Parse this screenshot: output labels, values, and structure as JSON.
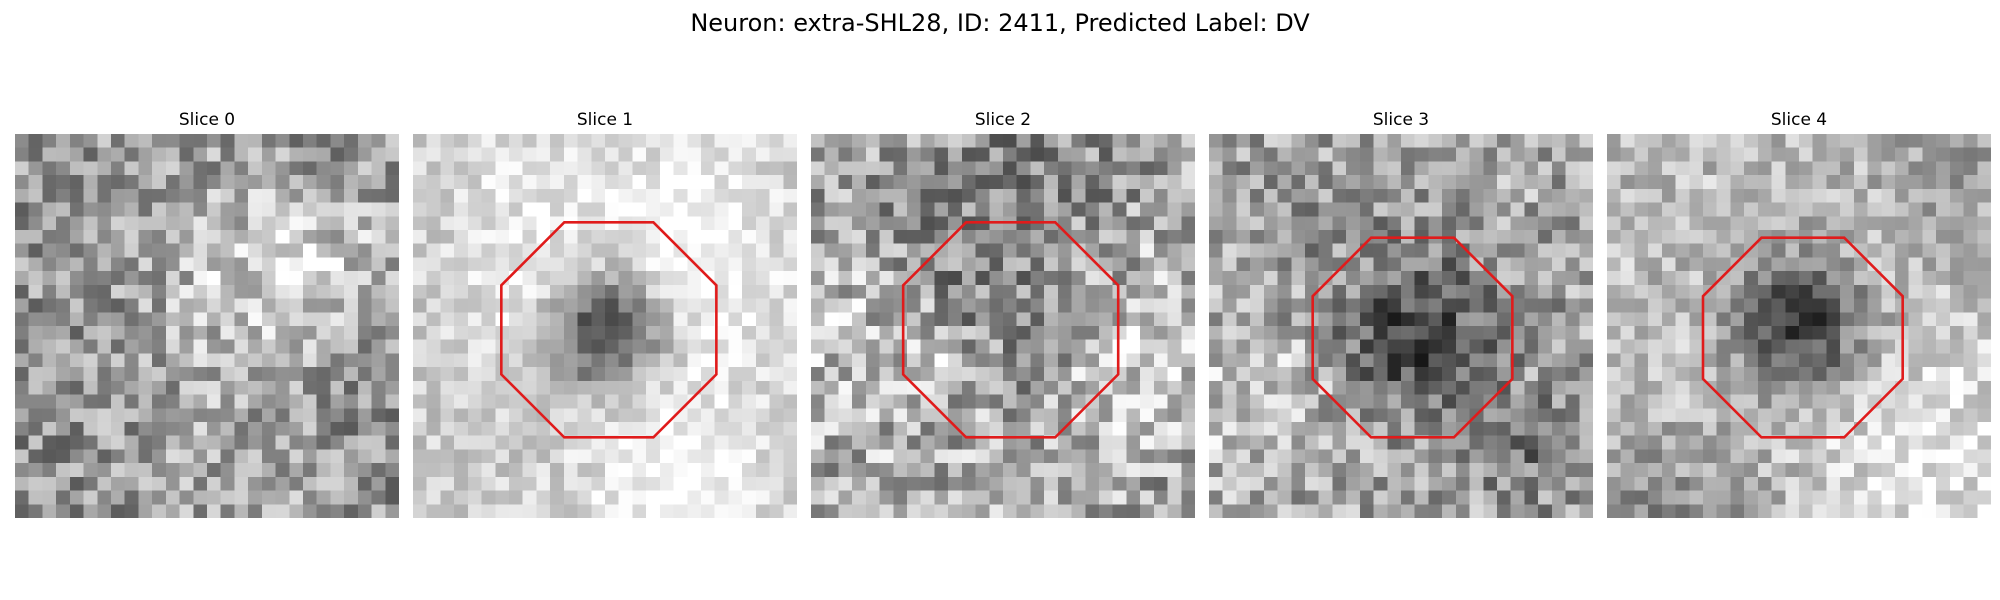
{
  "figure": {
    "title": "Neuron: extra-SHL28, ID: 2411, Predicted Label: DV"
  },
  "image": {
    "grid_size": 28,
    "colormap": "gray",
    "roi_color": "#e01b1b"
  },
  "slices": [
    {
      "label": "Slice 0",
      "base_brightness": 0.58,
      "noise": 0.3,
      "cell_darkness": 0.0,
      "cell_center": [
        0.5,
        0.5
      ],
      "cell_radius": 0.26,
      "roi": false
    },
    {
      "label": "Slice 1",
      "base_brightness": 0.8,
      "noise": 0.16,
      "cell_darkness": 0.72,
      "cell_center": [
        0.5,
        0.5
      ],
      "cell_radius": 0.18,
      "roi": true,
      "roi_center": [
        0.51,
        0.51
      ],
      "roi_radius": 0.28
    },
    {
      "label": "Slice 2",
      "base_brightness": 0.62,
      "noise": 0.34,
      "cell_darkness": 0.18,
      "cell_center": [
        0.52,
        0.52
      ],
      "cell_radius": 0.24,
      "roi": true,
      "roi_center": [
        0.52,
        0.51
      ],
      "roi_radius": 0.28
    },
    {
      "label": "Slice 3",
      "base_brightness": 0.62,
      "noise": 0.3,
      "cell_darkness": 0.42,
      "cell_center": [
        0.53,
        0.54
      ],
      "cell_radius": 0.23,
      "roi": true,
      "roi_center": [
        0.53,
        0.53
      ],
      "roi_radius": 0.26
    },
    {
      "label": "Slice 4",
      "base_brightness": 0.74,
      "noise": 0.22,
      "cell_darkness": 0.58,
      "cell_center": [
        0.5,
        0.5
      ],
      "cell_radius": 0.19,
      "roi": true,
      "roi_center": [
        0.51,
        0.53
      ],
      "roi_radius": 0.26
    }
  ]
}
